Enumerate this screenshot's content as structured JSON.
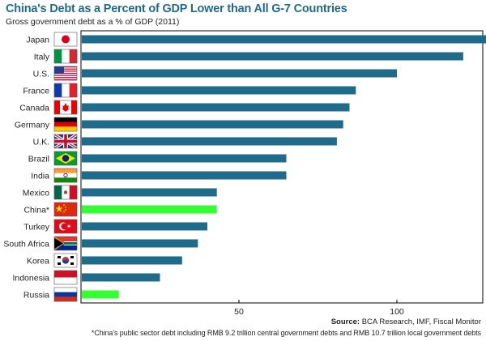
{
  "chart_data": {
    "type": "bar",
    "orientation": "horizontal",
    "title": "China's Debt as a Percent of GDP Lower than All G-7 Countries",
    "subtitle": "Gross government debt as a % of GDP (2011)",
    "categories": [
      "Japan",
      "Italy",
      "U.S.",
      "France",
      "Canada",
      "Germany",
      "U.K.",
      "Brazil",
      "India",
      "Mexico",
      "China*",
      "Turkey",
      "South Africa",
      "Korea",
      "Indonesia",
      "Russia"
    ],
    "values": [
      233,
      121,
      100,
      87,
      85,
      83,
      81,
      65,
      65,
      43,
      43,
      40,
      37,
      32,
      25,
      12
    ],
    "highlighted": [
      "China*",
      "Russia"
    ],
    "xlim": [
      0,
      240
    ],
    "xticks": [
      50,
      100,
      150,
      200
    ],
    "grid": false,
    "colors": {
      "bar": "#1f6b8c",
      "highlight": "#33ff33",
      "title": "#1f6b8c"
    }
  },
  "source_label": "Source:",
  "source_text": " BCA Research, IMF, Fiscal Monitor",
  "footnote": "*China's public sector debt including RMB 9.2 trillion central government debts and RMB 10.7 trillion local government debts",
  "flags": [
    "japan-flag-icon",
    "italy-flag-icon",
    "us-flag-icon",
    "france-flag-icon",
    "canada-flag-icon",
    "germany-flag-icon",
    "uk-flag-icon",
    "brazil-flag-icon",
    "india-flag-icon",
    "mexico-flag-icon",
    "china-flag-icon",
    "turkey-flag-icon",
    "south-africa-flag-icon",
    "korea-flag-icon",
    "indonesia-flag-icon",
    "russia-flag-icon"
  ]
}
